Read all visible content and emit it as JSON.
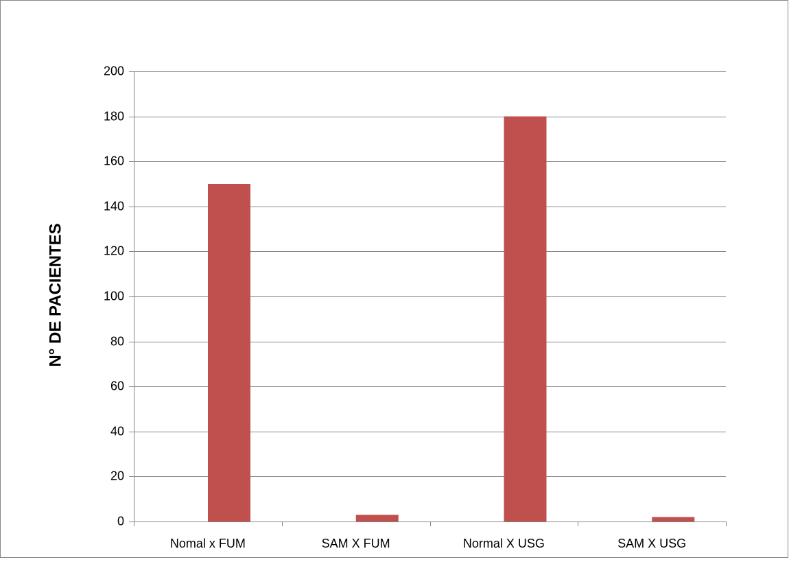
{
  "chart_data": {
    "type": "bar",
    "title": "",
    "xlabel": "",
    "ylabel": "N° DE PACIENTES",
    "categories": [
      "Nomal x FUM",
      "SAM X FUM",
      "Normal X USG",
      "SAM X USG"
    ],
    "series": [
      {
        "values": [
          150,
          3,
          180,
          2
        ]
      }
    ],
    "ylim": [
      0,
      200
    ],
    "yticks": [
      0,
      20,
      40,
      60,
      80,
      100,
      120,
      140,
      160,
      180,
      200
    ],
    "grid": true,
    "legend": "none",
    "bar_color": "#c0504d",
    "grid_color": "#868686"
  }
}
